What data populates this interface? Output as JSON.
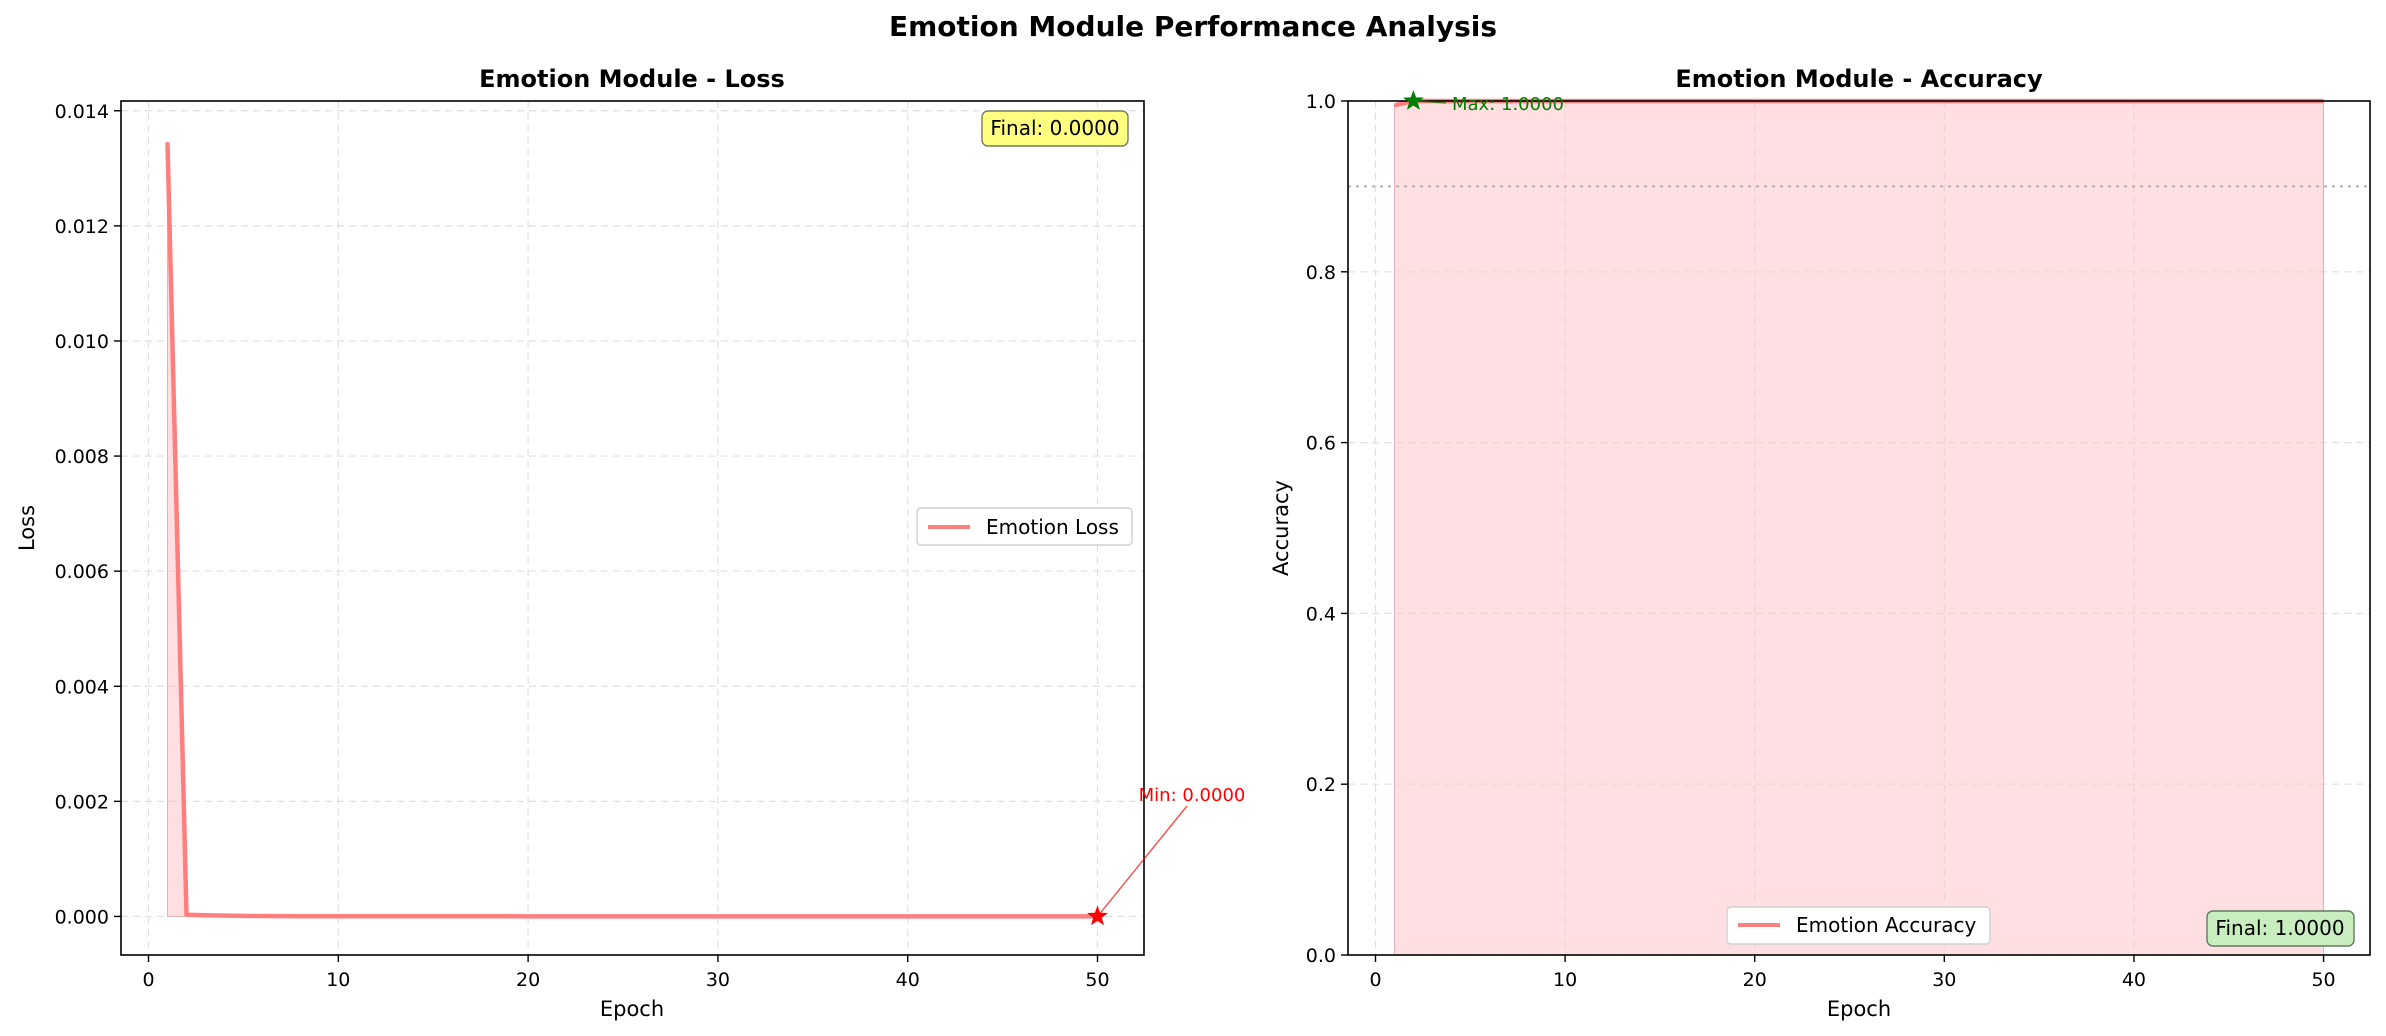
{
  "suptitle": "Emotion Module Performance Analysis",
  "colors": {
    "line": "#ff7f7f",
    "fill": "#ffc0c4",
    "min_marker": "#ff0000",
    "max_marker": "#008000",
    "final_loss_box": "#ffff80",
    "final_acc_box": "#c8eec0",
    "threshold_line": "#b0b0b0"
  },
  "loss_panel": {
    "final_text": "Final: 0.0000",
    "min_text": "Min: 0.0000",
    "min_icon": "star-icon"
  },
  "acc_panel": {
    "final_text": "Final: 1.0000",
    "max_text": "Max: 1.0000",
    "max_icon": "star-icon"
  },
  "chart_data": [
    {
      "type": "line",
      "title": "Emotion Module - Loss",
      "xlabel": "Epoch",
      "ylabel": "Loss",
      "xlim": [
        -1.45,
        52.45
      ],
      "ylim": [
        -0.00067,
        0.01417
      ],
      "xticks": [
        0,
        10,
        20,
        30,
        40,
        50
      ],
      "xtick_labels": [
        "0",
        "10",
        "20",
        "30",
        "40",
        "50"
      ],
      "yticks": [
        0.0,
        0.002,
        0.004,
        0.006,
        0.008,
        0.01,
        0.012,
        0.014
      ],
      "ytick_labels": [
        "0.000",
        "0.002",
        "0.004",
        "0.006",
        "0.008",
        "0.010",
        "0.012",
        "0.014"
      ],
      "grid": true,
      "legend": "center-right",
      "series": [
        {
          "name": "Emotion Loss",
          "x": [
            1,
            2,
            3,
            4,
            5,
            6,
            7,
            8,
            9,
            10,
            11,
            12,
            13,
            14,
            15,
            16,
            17,
            18,
            19,
            20,
            21,
            22,
            23,
            24,
            25,
            26,
            27,
            28,
            29,
            30,
            31,
            32,
            33,
            34,
            35,
            36,
            37,
            38,
            39,
            40,
            41,
            42,
            43,
            44,
            45,
            46,
            47,
            48,
            49,
            50
          ],
          "y": [
            0.01345,
            3e-05,
            2e-05,
            1.5e-05,
            1e-05,
            8e-06,
            6e-06,
            5e-06,
            4e-06,
            4e-06,
            3e-06,
            3e-06,
            3e-06,
            2e-06,
            2e-06,
            2e-06,
            2e-06,
            2e-06,
            2e-06,
            1e-06,
            1e-06,
            1e-06,
            1e-06,
            1e-06,
            1e-06,
            1e-06,
            1e-06,
            1e-06,
            1e-06,
            1e-06,
            1e-06,
            1e-06,
            1e-06,
            1e-06,
            1e-06,
            1e-06,
            1e-06,
            1e-06,
            1e-06,
            1e-06,
            0.0,
            0.0,
            0.0,
            0.0,
            0.0,
            0.0,
            0.0,
            0.0,
            0.0,
            0.0
          ]
        }
      ],
      "annotations": [
        {
          "text": "Min: 0.0000",
          "x": 50,
          "y": 0.0
        },
        {
          "text": "Final: 0.0000"
        }
      ]
    },
    {
      "type": "line",
      "title": "Emotion Module - Accuracy",
      "xlabel": "Epoch",
      "ylabel": "Accuracy",
      "xlim": [
        -1.45,
        52.45
      ],
      "ylim": [
        0.0,
        1.0
      ],
      "xticks": [
        0,
        10,
        20,
        30,
        40,
        50
      ],
      "xtick_labels": [
        "0",
        "10",
        "20",
        "30",
        "40",
        "50"
      ],
      "yticks": [
        0.0,
        0.2,
        0.4,
        0.6,
        0.8,
        1.0
      ],
      "ytick_labels": [
        "0.0",
        "0.2",
        "0.4",
        "0.6",
        "0.8",
        "1.0"
      ],
      "grid": true,
      "legend": "bottom-center",
      "reference_line_y": 0.9,
      "series": [
        {
          "name": "Emotion Accuracy",
          "x": [
            1,
            2,
            3,
            4,
            5,
            6,
            7,
            8,
            9,
            10,
            11,
            12,
            13,
            14,
            15,
            16,
            17,
            18,
            19,
            20,
            21,
            22,
            23,
            24,
            25,
            26,
            27,
            28,
            29,
            30,
            31,
            32,
            33,
            34,
            35,
            36,
            37,
            38,
            39,
            40,
            41,
            42,
            43,
            44,
            45,
            46,
            47,
            48,
            49,
            50
          ],
          "y": [
            0.995,
            1.0,
            1.0,
            1.0,
            1.0,
            1.0,
            1.0,
            1.0,
            1.0,
            1.0,
            1.0,
            1.0,
            1.0,
            1.0,
            1.0,
            1.0,
            1.0,
            1.0,
            1.0,
            1.0,
            1.0,
            1.0,
            1.0,
            1.0,
            1.0,
            1.0,
            1.0,
            1.0,
            1.0,
            1.0,
            1.0,
            1.0,
            1.0,
            1.0,
            1.0,
            1.0,
            1.0,
            1.0,
            1.0,
            1.0,
            1.0,
            1.0,
            1.0,
            1.0,
            1.0,
            1.0,
            1.0,
            1.0,
            1.0,
            1.0
          ]
        }
      ],
      "annotations": [
        {
          "text": "Max: 1.0000",
          "x": 2,
          "y": 1.0
        },
        {
          "text": "Final: 1.0000"
        }
      ]
    }
  ]
}
